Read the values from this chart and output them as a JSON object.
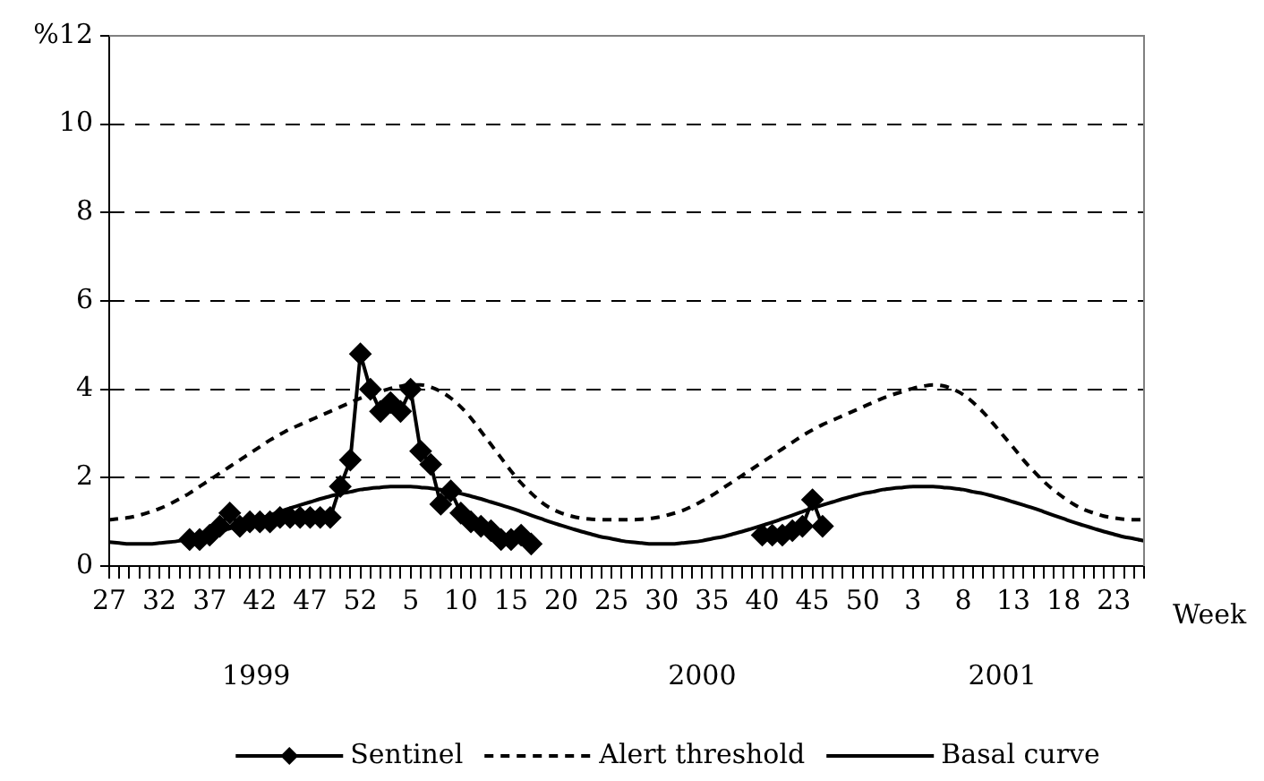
{
  "chart_data": {
    "type": "line",
    "categories": [
      "27",
      null,
      null,
      null,
      null,
      "32",
      null,
      null,
      null,
      null,
      "37",
      null,
      null,
      null,
      null,
      "42",
      null,
      null,
      null,
      null,
      "47",
      null,
      null,
      null,
      null,
      "52",
      null,
      null,
      null,
      null,
      "5",
      null,
      null,
      null,
      null,
      "10",
      null,
      null,
      null,
      null,
      "15",
      null,
      null,
      null,
      null,
      "20",
      null,
      null,
      null,
      null,
      "25",
      null,
      null,
      null,
      null,
      "30",
      null,
      null,
      null,
      null,
      "35",
      null,
      null,
      null,
      null,
      "40",
      null,
      null,
      null,
      null,
      "45",
      null,
      null,
      null,
      null,
      "50",
      null,
      null,
      null,
      null,
      "3",
      null,
      null,
      null,
      null,
      "8",
      null,
      null,
      null,
      null,
      "13",
      null,
      null,
      null,
      null,
      "18",
      null,
      null,
      null,
      null,
      "23",
      null,
      null,
      null
    ],
    "series": [
      {
        "name": "Sentinel",
        "color": "#000000",
        "marker": "diamond",
        "line_style": "solid",
        "values": [
          null,
          null,
          null,
          null,
          null,
          null,
          null,
          null,
          0.6,
          0.6,
          0.7,
          0.9,
          1.2,
          0.9,
          1.0,
          1.0,
          1.0,
          1.1,
          1.1,
          1.1,
          1.1,
          1.1,
          1.1,
          1.8,
          2.4,
          4.8,
          4.0,
          3.5,
          3.7,
          3.5,
          4.0,
          2.6,
          2.3,
          1.4,
          1.7,
          1.2,
          1.0,
          0.9,
          0.8,
          0.6,
          0.6,
          0.7,
          0.5,
          null,
          null,
          null,
          null,
          null,
          null,
          null,
          null,
          null,
          null,
          null,
          null,
          null,
          null,
          null,
          null,
          null,
          null,
          null,
          null,
          null,
          null,
          0.7,
          0.7,
          0.7,
          0.8,
          0.9,
          1.5,
          0.9,
          null,
          null,
          null,
          null,
          null,
          null,
          null,
          null,
          null,
          null,
          null,
          null,
          null,
          null,
          null,
          null,
          null,
          null,
          null,
          null,
          null,
          null,
          null,
          null,
          null,
          null,
          null,
          null,
          null,
          null,
          null,
          null
        ]
      },
      {
        "name": "Alert threshold",
        "color": "#000000",
        "marker": "none",
        "line_style": "dashed",
        "values": [
          1.05,
          1.07,
          1.1,
          1.15,
          1.22,
          1.3,
          1.4,
          1.52,
          1.65,
          1.8,
          1.95,
          2.1,
          2.25,
          2.4,
          2.55,
          2.7,
          2.85,
          2.98,
          3.1,
          3.2,
          3.3,
          3.4,
          3.5,
          3.6,
          3.7,
          3.8,
          3.88,
          3.95,
          4.02,
          4.07,
          4.1,
          4.1,
          4.05,
          3.95,
          3.8,
          3.6,
          3.35,
          3.05,
          2.75,
          2.45,
          2.15,
          1.88,
          1.65,
          1.45,
          1.3,
          1.2,
          1.13,
          1.08,
          1.06,
          1.05,
          1.05,
          1.05,
          1.05,
          1.06,
          1.08,
          1.12,
          1.18,
          1.25,
          1.35,
          1.47,
          1.6,
          1.75,
          1.9,
          2.05,
          2.2,
          2.35,
          2.5,
          2.65,
          2.8,
          2.95,
          3.08,
          3.2,
          3.3,
          3.4,
          3.5,
          3.6,
          3.7,
          3.8,
          3.88,
          3.95,
          4.02,
          4.07,
          4.1,
          4.08,
          4.0,
          3.88,
          3.7,
          3.48,
          3.22,
          2.95,
          2.68,
          2.4,
          2.15,
          1.92,
          1.72,
          1.55,
          1.4,
          1.28,
          1.2,
          1.13,
          1.09,
          1.06,
          1.05,
          1.05
        ]
      },
      {
        "name": "Basal curve",
        "color": "#000000",
        "marker": "none",
        "line_style": "solid",
        "values": [
          0.54,
          0.52,
          0.5,
          0.5,
          0.5,
          0.52,
          0.54,
          0.57,
          0.62,
          0.66,
          0.72,
          0.78,
          0.85,
          0.92,
          0.99,
          1.07,
          1.15,
          1.23,
          1.31,
          1.38,
          1.45,
          1.52,
          1.58,
          1.64,
          1.68,
          1.73,
          1.76,
          1.78,
          1.8,
          1.8,
          1.8,
          1.78,
          1.76,
          1.73,
          1.68,
          1.64,
          1.58,
          1.52,
          1.45,
          1.38,
          1.31,
          1.23,
          1.15,
          1.07,
          0.99,
          0.92,
          0.85,
          0.78,
          0.72,
          0.66,
          0.62,
          0.57,
          0.54,
          0.52,
          0.5,
          0.5,
          0.5,
          0.52,
          0.54,
          0.57,
          0.62,
          0.66,
          0.72,
          0.78,
          0.85,
          0.92,
          0.99,
          1.07,
          1.15,
          1.23,
          1.31,
          1.38,
          1.45,
          1.52,
          1.58,
          1.64,
          1.68,
          1.73,
          1.76,
          1.78,
          1.8,
          1.8,
          1.8,
          1.78,
          1.76,
          1.73,
          1.68,
          1.64,
          1.58,
          1.52,
          1.45,
          1.38,
          1.31,
          1.23,
          1.15,
          1.07,
          0.99,
          0.92,
          0.85,
          0.78,
          0.72,
          0.66,
          0.62,
          0.57
        ]
      }
    ],
    "xlabel": "Week",
    "ylim": [
      0,
      12
    ],
    "yticks": [
      0,
      2,
      4,
      6,
      8,
      10,
      {
        "value": 12,
        "label": "%12"
      }
    ],
    "grid": "y",
    "legend": "bottom",
    "annotations": [
      "1999",
      "2000",
      "2001"
    ]
  }
}
